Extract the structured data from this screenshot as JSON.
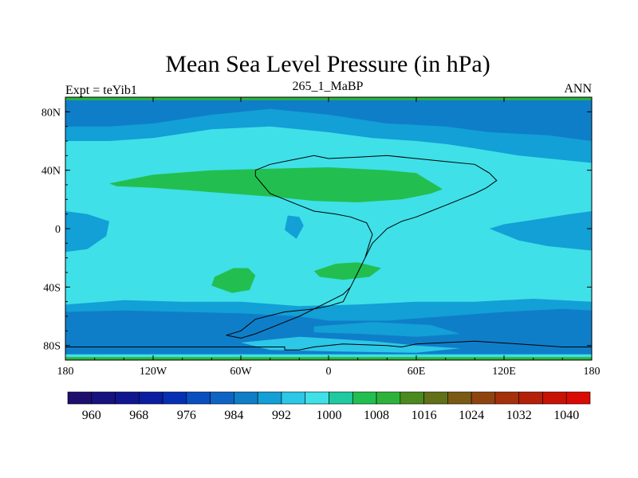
{
  "chart_data": {
    "type": "heatmap",
    "title": "Mean Sea Level Pressure (in hPa)",
    "left_string": "Expt = teYib1",
    "center_string": "265_1_MaBP",
    "right_string": "ANN",
    "x_range": [
      -180,
      180
    ],
    "y_range": [
      -90,
      90
    ],
    "x_ticks": [
      {
        "value": -180,
        "label": "180"
      },
      {
        "value": -120,
        "label": "120W"
      },
      {
        "value": -60,
        "label": "60W"
      },
      {
        "value": 0,
        "label": "0"
      },
      {
        "value": 60,
        "label": "60E"
      },
      {
        "value": 120,
        "label": "120E"
      },
      {
        "value": 180,
        "label": "180"
      }
    ],
    "y_ticks": [
      {
        "value": 80,
        "label": "80N"
      },
      {
        "value": 40,
        "label": "40N"
      },
      {
        "value": 0,
        "label": "0"
      },
      {
        "value": -40,
        "label": "40S"
      },
      {
        "value": -80,
        "label": "80S"
      }
    ],
    "colorbar": {
      "levels": [
        956,
        960,
        964,
        968,
        972,
        976,
        980,
        984,
        988,
        992,
        996,
        1000,
        1004,
        1008,
        1012,
        1016,
        1020,
        1024,
        1028,
        1032,
        1036,
        1040,
        1044
      ],
      "colors": [
        "#1c0f6e",
        "#16127e",
        "#10168f",
        "#0b1da1",
        "#0530b3",
        "#0a4fbf",
        "#0e64c4",
        "#0f7ec8",
        "#12a0d6",
        "#2dc7e8",
        "#3fe0e8",
        "#20c9a0",
        "#22bf50",
        "#2db33c",
        "#4a8a1e",
        "#62701a",
        "#7a5a14",
        "#8f4410",
        "#a5300c",
        "#b52008",
        "#c81206",
        "#dc0a04"
      ],
      "labels": [
        {
          "value": 960,
          "label": "960"
        },
        {
          "value": 968,
          "label": "968"
        },
        {
          "value": 976,
          "label": "976"
        },
        {
          "value": 984,
          "label": "984"
        },
        {
          "value": 992,
          "label": "992"
        },
        {
          "value": 1000,
          "label": "1000"
        },
        {
          "value": 1008,
          "label": "1008"
        },
        {
          "value": 1016,
          "label": "1016"
        },
        {
          "value": 1024,
          "label": "1024"
        },
        {
          "value": 1032,
          "label": "1032"
        },
        {
          "value": 1040,
          "label": "1040"
        }
      ]
    },
    "field_regions": [
      {
        "name": "base-996",
        "value": 996,
        "polygon": [
          [
            -180,
            90
          ],
          [
            180,
            90
          ],
          [
            180,
            -90
          ],
          [
            -180,
            -90
          ]
        ]
      },
      {
        "name": "north-band-988",
        "value": 988,
        "polygon": [
          [
            -180,
            90
          ],
          [
            180,
            90
          ],
          [
            180,
            45
          ],
          [
            160,
            47
          ],
          [
            130,
            50
          ],
          [
            100,
            55
          ],
          [
            80,
            58
          ],
          [
            60,
            60
          ],
          [
            30,
            62
          ],
          [
            0,
            66
          ],
          [
            -40,
            70
          ],
          [
            -80,
            68
          ],
          [
            -120,
            62
          ],
          [
            -150,
            60
          ],
          [
            -180,
            60
          ]
        ]
      },
      {
        "name": "north-band-984",
        "value": 984,
        "polygon": [
          [
            -180,
            90
          ],
          [
            180,
            90
          ],
          [
            180,
            60
          ],
          [
            150,
            64
          ],
          [
            110,
            66
          ],
          [
            80,
            70
          ],
          [
            40,
            72
          ],
          [
            0,
            78
          ],
          [
            -40,
            82
          ],
          [
            -80,
            78
          ],
          [
            -120,
            72
          ],
          [
            -150,
            70
          ],
          [
            -180,
            70
          ]
        ]
      },
      {
        "name": "pacific-low-988",
        "value": 988,
        "polygon": [
          [
            110,
            0
          ],
          [
            130,
            -8
          ],
          [
            150,
            -12
          ],
          [
            180,
            -15
          ],
          [
            180,
            12
          ],
          [
            165,
            10
          ],
          [
            140,
            6
          ],
          [
            120,
            3
          ]
        ]
      },
      {
        "name": "west-low-988",
        "value": 988,
        "polygon": [
          [
            -180,
            12
          ],
          [
            -165,
            10
          ],
          [
            -150,
            5
          ],
          [
            -152,
            -5
          ],
          [
            -165,
            -14
          ],
          [
            -180,
            -16
          ]
        ]
      },
      {
        "name": "sh-band-988",
        "value": 988,
        "polygon": [
          [
            -180,
            -52
          ],
          [
            -140,
            -49
          ],
          [
            -100,
            -50
          ],
          [
            -60,
            -50
          ],
          [
            -20,
            -53
          ],
          [
            20,
            -52
          ],
          [
            60,
            -50
          ],
          [
            100,
            -50
          ],
          [
            140,
            -48
          ],
          [
            180,
            -50
          ],
          [
            180,
            -90
          ],
          [
            -180,
            -90
          ]
        ]
      },
      {
        "name": "sh-band-984",
        "value": 984,
        "polygon": [
          [
            -180,
            -57
          ],
          [
            -140,
            -56
          ],
          [
            -100,
            -57
          ],
          [
            -60,
            -58
          ],
          [
            -20,
            -60
          ],
          [
            0,
            -63
          ],
          [
            40,
            -63
          ],
          [
            80,
            -60
          ],
          [
            120,
            -57
          ],
          [
            160,
            -55
          ],
          [
            180,
            -56
          ],
          [
            180,
            -90
          ],
          [
            -180,
            -90
          ]
        ]
      },
      {
        "name": "sh-ridge-988",
        "value": 988,
        "polygon": [
          [
            -10,
            -67
          ],
          [
            30,
            -64
          ],
          [
            70,
            -66
          ],
          [
            90,
            -72
          ],
          [
            60,
            -74
          ],
          [
            20,
            -72
          ],
          [
            -10,
            -71
          ]
        ]
      },
      {
        "name": "sh-ridge-992",
        "value": 992,
        "polygon": [
          [
            -60,
            -78
          ],
          [
            -20,
            -74
          ],
          [
            30,
            -77
          ],
          [
            60,
            -80
          ],
          [
            90,
            -82
          ],
          [
            60,
            -85
          ],
          [
            0,
            -84
          ],
          [
            -40,
            -83
          ]
        ]
      },
      {
        "name": "polar-996",
        "value": 996,
        "polygon": [
          [
            -180,
            -86
          ],
          [
            180,
            -86
          ],
          [
            180,
            -90
          ],
          [
            -180,
            -90
          ]
        ]
      },
      {
        "name": "polar-1008",
        "value": 1008,
        "polygon": [
          [
            -180,
            -88
          ],
          [
            180,
            -88
          ],
          [
            180,
            -90
          ],
          [
            -180,
            -90
          ]
        ]
      },
      {
        "name": "north-edge-1008",
        "value": 1008,
        "polygon": [
          [
            -180,
            90
          ],
          [
            180,
            90
          ],
          [
            180,
            88
          ],
          [
            -180,
            88
          ]
        ]
      },
      {
        "name": "subtropical-high-n",
        "value": 1004,
        "polygon": [
          [
            -150,
            31
          ],
          [
            -120,
            37
          ],
          [
            -80,
            40
          ],
          [
            -40,
            41
          ],
          [
            0,
            42
          ],
          [
            40,
            40
          ],
          [
            60,
            38
          ],
          [
            78,
            27
          ],
          [
            70,
            24
          ],
          [
            50,
            20
          ],
          [
            20,
            18
          ],
          [
            -10,
            19
          ],
          [
            -40,
            22
          ],
          [
            -80,
            25
          ],
          [
            -120,
            28
          ],
          [
            -145,
            29
          ]
        ]
      },
      {
        "name": "equatorial-low-988",
        "value": 988,
        "polygon": [
          [
            -28,
            9
          ],
          [
            -20,
            8
          ],
          [
            -17,
            2
          ],
          [
            -22,
            -7
          ],
          [
            -30,
            -1
          ]
        ]
      },
      {
        "name": "sh-high-1004-a",
        "value": 1004,
        "polygon": [
          [
            -78,
            -33
          ],
          [
            -65,
            -27
          ],
          [
            -55,
            -27
          ],
          [
            -50,
            -32
          ],
          [
            -54,
            -42
          ],
          [
            -66,
            -44
          ],
          [
            -80,
            -39
          ]
        ]
      },
      {
        "name": "sh-high-1004-b",
        "value": 1004,
        "polygon": [
          [
            -10,
            -29
          ],
          [
            5,
            -24
          ],
          [
            20,
            -23
          ],
          [
            36,
            -27
          ],
          [
            28,
            -33
          ],
          [
            10,
            -35
          ],
          [
            -6,
            -33
          ]
        ]
      }
    ],
    "coastlines": [
      {
        "name": "land-outline-main",
        "points": [
          [
            -180,
            -81
          ],
          [
            -30,
            -81
          ],
          [
            -30,
            -83
          ],
          [
            -20,
            -83
          ],
          [
            -10,
            -81
          ],
          [
            10,
            -79
          ],
          [
            40,
            -80
          ],
          [
            50,
            -81
          ],
          [
            60,
            -79
          ],
          [
            80,
            -78
          ],
          [
            100,
            -77
          ],
          [
            130,
            -79
          ],
          [
            160,
            -81
          ],
          [
            180,
            -81
          ]
        ]
      },
      {
        "name": "continent-a",
        "points": [
          [
            -50,
            40
          ],
          [
            -40,
            44
          ],
          [
            -25,
            47
          ],
          [
            -10,
            50
          ],
          [
            0,
            48
          ],
          [
            20,
            49
          ],
          [
            40,
            50
          ],
          [
            60,
            48
          ],
          [
            80,
            46
          ],
          [
            100,
            44
          ],
          [
            110,
            38
          ],
          [
            115,
            33
          ],
          [
            108,
            28
          ],
          [
            100,
            24
          ],
          [
            90,
            20
          ],
          [
            80,
            16
          ],
          [
            70,
            12
          ],
          [
            60,
            8
          ],
          [
            50,
            5
          ],
          [
            40,
            0
          ],
          [
            35,
            -5
          ],
          [
            30,
            -10
          ],
          [
            25,
            -20
          ],
          [
            20,
            -30
          ],
          [
            15,
            -40
          ],
          [
            10,
            -50
          ],
          [
            0,
            -53
          ],
          [
            -10,
            -55
          ],
          [
            -30,
            -57
          ],
          [
            -50,
            -62
          ],
          [
            -60,
            -70
          ],
          [
            -70,
            -73
          ],
          [
            -60,
            -75
          ],
          [
            -50,
            -72
          ],
          [
            -40,
            -68
          ],
          [
            -30,
            -64
          ],
          [
            -20,
            -60
          ],
          [
            -10,
            -55
          ],
          [
            0,
            -50
          ],
          [
            10,
            -45
          ],
          [
            15,
            -40
          ],
          [
            20,
            -30
          ],
          [
            25,
            -20
          ],
          [
            28,
            -10
          ],
          [
            30,
            -4
          ],
          [
            26,
            4
          ],
          [
            15,
            8
          ],
          [
            5,
            10
          ],
          [
            -10,
            12
          ],
          [
            -20,
            16
          ],
          [
            -30,
            20
          ],
          [
            -40,
            24
          ],
          [
            -45,
            30
          ],
          [
            -50,
            36
          ],
          [
            -50,
            40
          ]
        ]
      }
    ]
  }
}
